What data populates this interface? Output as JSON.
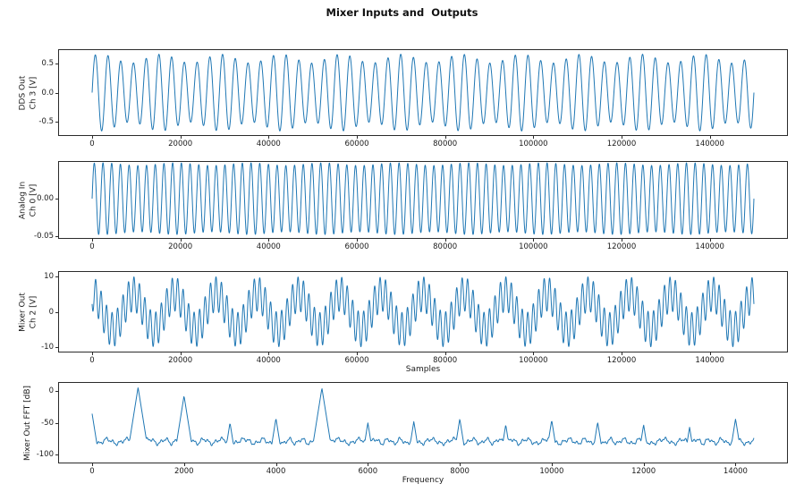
{
  "figure": {
    "title": "Mixer Inputs and  Outputs",
    "line_color": "#1f77b4",
    "background": "#ffffff"
  },
  "chart_data": [
    {
      "type": "line",
      "id": "dds-out-ch3",
      "ylabel": "DDS Out\nCh 3 [V]",
      "xlabel": "",
      "x_range": [
        0,
        150000
      ],
      "xlim": [
        -7500,
        157500
      ],
      "ylim": [
        -0.72,
        0.72
      ],
      "xtick_values": [
        0,
        20000,
        40000,
        60000,
        80000,
        100000,
        120000,
        140000
      ],
      "xtick_labels": [
        "0",
        "20000",
        "40000",
        "60000",
        "80000",
        "100000",
        "120000",
        "140000"
      ],
      "ytick_values": [
        0.5,
        0.0,
        -0.5
      ],
      "ytick_labels": [
        "0.5",
        "0.0",
        "-0.5"
      ],
      "signal": {
        "kind": "am_sine",
        "base_amp": 0.575,
        "mod_amp": 0.075,
        "carrier_cycles": 52,
        "mod_cycles": 11,
        "points": 4200
      }
    },
    {
      "type": "line",
      "id": "analog-in-ch0",
      "ylabel": "Analog In\nCh 0 [V]",
      "xlabel": "",
      "x_range": [
        0,
        150000
      ],
      "xlim": [
        -7500,
        157500
      ],
      "ylim": [
        -0.053,
        0.0495
      ],
      "xtick_values": [
        0,
        20000,
        40000,
        60000,
        80000,
        100000,
        120000,
        140000
      ],
      "xtick_labels": [
        "0",
        "20000",
        "40000",
        "60000",
        "80000",
        "100000",
        "120000",
        "140000"
      ],
      "ytick_values": [
        0.0,
        -0.05
      ],
      "ytick_labels": [
        "0.00",
        "-0.05"
      ],
      "signal": {
        "kind": "am_sine",
        "base_amp": 0.0465,
        "mod_amp": 0.0018,
        "carrier_cycles": 76,
        "mod_cycles": 9,
        "points": 4600
      }
    },
    {
      "type": "line",
      "id": "mixer-out-ch2",
      "ylabel": "Mixer Out\nCh 2 [V]",
      "xlabel": "Samples",
      "x_range": [
        0,
        150000
      ],
      "xlim": [
        -7500,
        157500
      ],
      "ylim": [
        -11.4,
        11.4
      ],
      "xtick_values": [
        0,
        20000,
        40000,
        60000,
        80000,
        100000,
        120000,
        140000
      ],
      "xtick_labels": [
        "0",
        "20000",
        "40000",
        "60000",
        "80000",
        "100000",
        "120000",
        "140000"
      ],
      "ytick_values": [
        10,
        0,
        -10
      ],
      "ytick_labels": [
        "10",
        "0",
        "-10"
      ],
      "signal": {
        "kind": "multi_sine",
        "points": 6000,
        "components": [
          {
            "amp": 5.1,
            "cycles": 16,
            "phase": 0.25
          },
          {
            "amp": -4.9,
            "cycles": 121,
            "phase": 0.1
          }
        ]
      }
    },
    {
      "type": "line",
      "id": "mixer-out-fft",
      "ylabel": "Mixer Out FFT [dB]",
      "xlabel": "Frequency",
      "x_range": [
        0,
        14400
      ],
      "xlim": [
        -720,
        15120
      ],
      "ylim": [
        -112,
        12
      ],
      "xtick_values": [
        0,
        2000,
        4000,
        6000,
        8000,
        10000,
        12000,
        14000
      ],
      "xtick_labels": [
        "0",
        "2000",
        "4000",
        "6000",
        "8000",
        "10000",
        "12000",
        "14000"
      ],
      "ytick_values": [
        0,
        -50,
        -100
      ],
      "ytick_labels": [
        "0",
        "-50",
        "-100"
      ],
      "signal": {
        "kind": "spectrum",
        "points": 1400,
        "noise_floor": -79,
        "slope": 0.45,
        "peaks": [
          {
            "f": 0,
            "level": -36
          },
          {
            "f": 1000,
            "level": 5
          },
          {
            "f": 2000,
            "level": -8
          },
          {
            "f": 3000,
            "level": -50
          },
          {
            "f": 4000,
            "level": -43
          },
          {
            "f": 5000,
            "level": 4
          },
          {
            "f": 6000,
            "level": -50
          },
          {
            "f": 7000,
            "level": -48
          },
          {
            "f": 8000,
            "level": -44
          },
          {
            "f": 9000,
            "level": -53
          },
          {
            "f": 10000,
            "level": -46
          },
          {
            "f": 11000,
            "level": -49
          },
          {
            "f": 12000,
            "level": -53
          },
          {
            "f": 13000,
            "level": -57
          },
          {
            "f": 14000,
            "level": -44
          }
        ]
      }
    }
  ]
}
